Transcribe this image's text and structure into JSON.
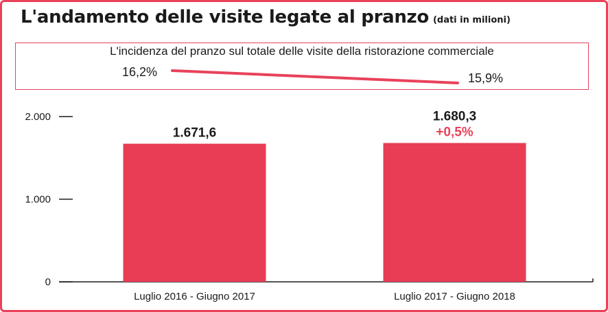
{
  "title": "L'andamento delle visite legate al pranzo",
  "title_unit": "(dati in milioni)",
  "incidence": {
    "title": "L'incidenza del pranzo sul totale delle visite della ristorazione commerciale",
    "start_label": "16,2%",
    "end_label": "15,9%",
    "values": [
      16.2,
      15.9
    ],
    "line_color": "#e8425a"
  },
  "colors": {
    "accent": "#e8425a",
    "bar": "#e83d55",
    "text": "#1a1a1a"
  },
  "chart_data": {
    "type": "bar",
    "categories": [
      "Luglio 2016 - Giugno 2017",
      "Luglio 2017 - Giugno 2018"
    ],
    "values": [
      1671.6,
      1680.3
    ],
    "value_labels": [
      "1.671,6",
      "1.680,3"
    ],
    "delta_labels": [
      "",
      "+0,5%"
    ],
    "ylim": [
      0,
      2000
    ],
    "yticks": [
      0,
      1000,
      2000
    ],
    "ytick_labels": [
      "0",
      "1.000",
      "2.000"
    ],
    "xlabel": "",
    "ylabel": "",
    "grid": false
  }
}
